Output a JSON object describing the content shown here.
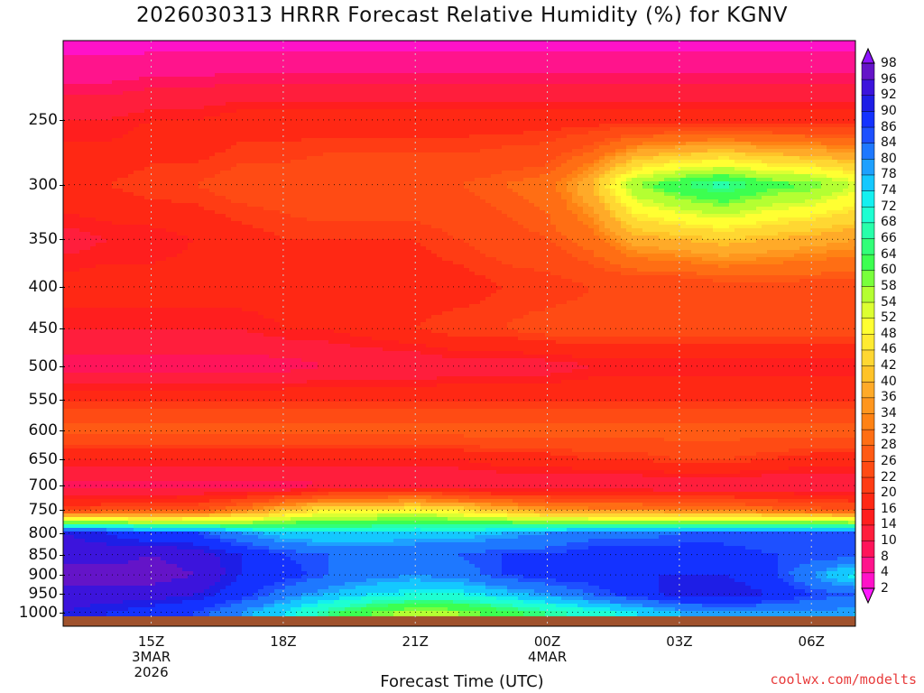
{
  "title": "2026030313 HRRR Forecast Relative Humidity (%) for KGNV",
  "xlabel": "Forecast Time (UTC)",
  "credit": "coolwx.com/modelts",
  "chart_data": {
    "type": "heatmap",
    "title": "2026030313 HRRR Forecast Relative Humidity (%) for KGNV",
    "xlabel": "Forecast Time (UTC)",
    "ylabel": "",
    "y_axis": "pressure (hPa), log scale, inverted",
    "y_ticks": [
      "250",
      "300",
      "350",
      "400",
      "450",
      "500",
      "550",
      "600",
      "650",
      "700",
      "750",
      "800",
      "850",
      "900",
      "950",
      "1000"
    ],
    "x_ticks": [
      {
        "label": "15Z",
        "sub": [
          "3MAR",
          "2026"
        ]
      },
      {
        "label": "18Z",
        "sub": []
      },
      {
        "label": "21Z",
        "sub": []
      },
      {
        "label": "00Z",
        "sub": [
          "4MAR"
        ]
      },
      {
        "label": "03Z",
        "sub": []
      },
      {
        "label": "06Z",
        "sub": []
      }
    ],
    "x_hours": [
      13,
      14,
      15,
      16,
      17,
      18,
      19,
      20,
      21,
      22,
      23,
      24,
      25,
      26,
      27,
      28,
      29,
      30,
      31
    ],
    "xlim": [
      13,
      31
    ],
    "ylim": [
      1040,
      200
    ],
    "pressure_levels": [
      200,
      250,
      300,
      350,
      400,
      450,
      500,
      550,
      600,
      650,
      700,
      750,
      800,
      850,
      900,
      950,
      1000
    ],
    "rh_profiles": [
      [
        2,
        14,
        20,
        12,
        18,
        14,
        8,
        20,
        28,
        16,
        8,
        22,
        92,
        94,
        98,
        94,
        92
      ],
      [
        2,
        14,
        20,
        14,
        18,
        14,
        8,
        20,
        28,
        16,
        8,
        24,
        90,
        94,
        98,
        94,
        90
      ],
      [
        2,
        16,
        22,
        14,
        18,
        14,
        8,
        20,
        28,
        16,
        8,
        24,
        86,
        96,
        98,
        94,
        88
      ],
      [
        2,
        16,
        22,
        16,
        18,
        14,
        8,
        20,
        28,
        16,
        8,
        26,
        86,
        94,
        96,
        92,
        86
      ],
      [
        2,
        18,
        24,
        18,
        18,
        14,
        8,
        20,
        28,
        16,
        8,
        32,
        80,
        90,
        90,
        88,
        80
      ],
      [
        2,
        18,
        24,
        20,
        18,
        16,
        8,
        20,
        28,
        16,
        8,
        40,
        76,
        86,
        88,
        82,
        74
      ],
      [
        2,
        18,
        26,
        20,
        18,
        16,
        10,
        20,
        28,
        16,
        10,
        48,
        74,
        84,
        84,
        78,
        66
      ],
      [
        2,
        18,
        26,
        20,
        18,
        18,
        10,
        20,
        28,
        16,
        10,
        48,
        74,
        84,
        82,
        74,
        60
      ],
      [
        2,
        18,
        26,
        20,
        18,
        20,
        10,
        20,
        28,
        16,
        10,
        50,
        76,
        84,
        80,
        72,
        56
      ],
      [
        2,
        18,
        26,
        22,
        18,
        22,
        12,
        20,
        28,
        16,
        10,
        46,
        76,
        84,
        82,
        72,
        58
      ],
      [
        2,
        18,
        28,
        24,
        20,
        22,
        12,
        20,
        28,
        18,
        10,
        40,
        78,
        86,
        86,
        76,
        62
      ],
      [
        2,
        18,
        30,
        26,
        20,
        24,
        12,
        20,
        28,
        18,
        10,
        36,
        80,
        86,
        88,
        80,
        66
      ],
      [
        2,
        18,
        40,
        30,
        22,
        24,
        14,
        20,
        28,
        20,
        10,
        34,
        82,
        88,
        88,
        84,
        70
      ],
      [
        2,
        18,
        58,
        38,
        22,
        24,
        14,
        20,
        28,
        20,
        10,
        34,
        82,
        88,
        90,
        88,
        74
      ],
      [
        2,
        18,
        64,
        40,
        22,
        24,
        14,
        20,
        28,
        22,
        10,
        32,
        84,
        88,
        90,
        92,
        78
      ],
      [
        2,
        18,
        68,
        42,
        24,
        24,
        14,
        20,
        28,
        22,
        10,
        32,
        84,
        88,
        90,
        92,
        80
      ],
      [
        2,
        18,
        62,
        40,
        24,
        24,
        14,
        20,
        28,
        20,
        10,
        30,
        84,
        86,
        88,
        90,
        80
      ],
      [
        2,
        18,
        60,
        38,
        24,
        24,
        14,
        20,
        28,
        18,
        10,
        28,
        86,
        86,
        80,
        86,
        80
      ],
      [
        2,
        18,
        54,
        36,
        24,
        24,
        14,
        20,
        28,
        18,
        10,
        26,
        86,
        86,
        72,
        84,
        78
      ]
    ],
    "surface": "below ground (~1015 hPa)",
    "grid": true,
    "colorbar": {
      "levels": [
        2,
        4,
        8,
        10,
        14,
        16,
        20,
        22,
        26,
        28,
        32,
        34,
        36,
        40,
        42,
        46,
        48,
        52,
        54,
        58,
        60,
        64,
        66,
        68,
        72,
        74,
        78,
        80,
        84,
        86,
        90,
        92,
        96,
        98
      ],
      "colors": [
        "#ff1aff",
        "#ff12c8",
        "#ff148c",
        "#ff145a",
        "#ff1e3c",
        "#ff1e1e",
        "#ff2814",
        "#ff3c14",
        "#ff4b14",
        "#ff5a14",
        "#ff6e14",
        "#ff8214",
        "#ff961e",
        "#ffaa28",
        "#ffc328",
        "#ffd732",
        "#ffeb32",
        "#ffff32",
        "#dcff32",
        "#b4ff32",
        "#78ff3c",
        "#3cff50",
        "#32ff78",
        "#28ffaa",
        "#1effd2",
        "#14f0f0",
        "#14c8ff",
        "#1ea0ff",
        "#1e78ff",
        "#1e50ff",
        "#1432ff",
        "#1e1ee6",
        "#3c14dc",
        "#6414c8",
        "#8c14ff"
      ]
    }
  }
}
